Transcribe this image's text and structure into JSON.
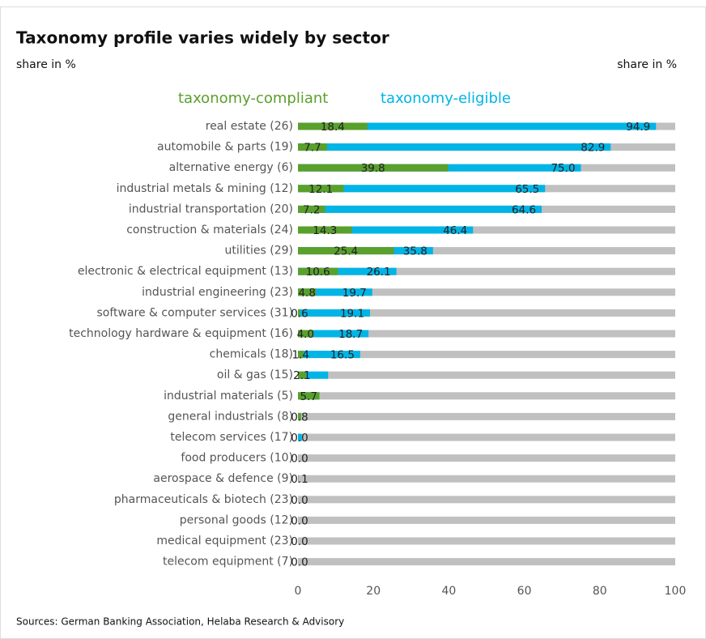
{
  "chart_data": {
    "type": "bar",
    "orientation": "horizontal",
    "title": "Taxonomy profile varies widely by sector",
    "subtitle_left": "share in %",
    "subtitle_right": "share in %",
    "source": "Sources: German Banking Association, Helaba Research & Advisory",
    "categories": [
      "real estate (26)",
      "automobile & parts (19)",
      "alternative energy (6)",
      "industrial metals & mining (12)",
      "industrial transportation (20)",
      "construction & materials (24)",
      "utilities (29)",
      "electronic & electrical equipment (13)",
      "industrial engineering (23)",
      "software & computer services (31)",
      "technology hardware & equipment (16)",
      "chemicals (18)",
      "oil & gas (15)",
      "industrial materials (5)",
      "general industrials (8)",
      "telecom services (17)",
      "food producers (10)",
      "aerospace & defence (9)",
      "pharmaceuticals & biotech (23)",
      "personal goods (12)",
      "medical equipment (23)",
      "telecom equipment (7)"
    ],
    "series": [
      {
        "name": "taxonomy-eligible",
        "color": "#00b4e6",
        "values": [
          94.9,
          82.9,
          75.0,
          65.5,
          64.6,
          46.4,
          35.8,
          26.1,
          19.7,
          19.1,
          18.7,
          16.5,
          8.0,
          5.7,
          0.8,
          1.0,
          0,
          0.1,
          0,
          0,
          0,
          0
        ],
        "value_labels": [
          "94.9",
          "82.9",
          "75.0",
          "65.5",
          "64.6",
          "46.4",
          "35.8",
          "26.1",
          "19.7",
          "19.1",
          "18.7",
          "16.5",
          null,
          null,
          null,
          null,
          null,
          null,
          null,
          null,
          null,
          null
        ]
      },
      {
        "name": "taxonomy-compliant",
        "color": "#5aa02c",
        "values": [
          18.4,
          7.7,
          39.8,
          12.1,
          7.2,
          14.3,
          25.4,
          10.6,
          4.8,
          0.6,
          4.0,
          1.4,
          2.1,
          5.7,
          0.8,
          0,
          0,
          0.1,
          0,
          0,
          0,
          0
        ],
        "value_labels": [
          "18.4",
          "7.7",
          "39.8",
          "12.1",
          "7.2",
          "14.3",
          "25.4",
          "10.6",
          "4.8",
          "0.6",
          "4.0",
          "1.4",
          "2.1",
          "5.7",
          "0.8",
          "0.0",
          "0.0",
          "0.1",
          "0.0",
          "0.0",
          "0.0",
          "0.0"
        ]
      }
    ],
    "background_color": "#c0c0c0",
    "xlim": [
      0,
      100
    ],
    "xticks": [
      0,
      20,
      40,
      60,
      80,
      100
    ],
    "grid": false
  }
}
